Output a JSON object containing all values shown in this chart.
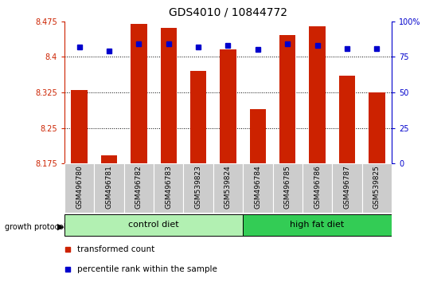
{
  "title": "GDS4010 / 10844772",
  "samples": [
    "GSM496780",
    "GSM496781",
    "GSM496782",
    "GSM496783",
    "GSM539823",
    "GSM539824",
    "GSM496784",
    "GSM496785",
    "GSM496786",
    "GSM496787",
    "GSM539825"
  ],
  "red_values": [
    8.33,
    8.193,
    8.47,
    8.46,
    8.37,
    8.415,
    8.29,
    8.445,
    8.465,
    8.36,
    8.325
  ],
  "blue_values": [
    82,
    79,
    84,
    84,
    82,
    83,
    80,
    84,
    83,
    81,
    81
  ],
  "y_min": 8.175,
  "y_max": 8.475,
  "y_ticks": [
    8.175,
    8.25,
    8.325,
    8.4,
    8.475
  ],
  "y_tick_labels": [
    "8.175",
    "8.25",
    "8.325",
    "8.4",
    "8.475"
  ],
  "y2_ticks": [
    0,
    25,
    50,
    75,
    100
  ],
  "y2_tick_labels": [
    "0",
    "25",
    "50",
    "75",
    "100%"
  ],
  "groups": [
    {
      "label": "control diet",
      "color": "#b2f0b2",
      "start": 0,
      "end": 6
    },
    {
      "label": "high fat diet",
      "color": "#33cc55",
      "start": 6,
      "end": 11
    }
  ],
  "red_color": "#CC2200",
  "blue_color": "#0000CC",
  "bar_width": 0.55,
  "tick_bg_color": "#cccccc"
}
